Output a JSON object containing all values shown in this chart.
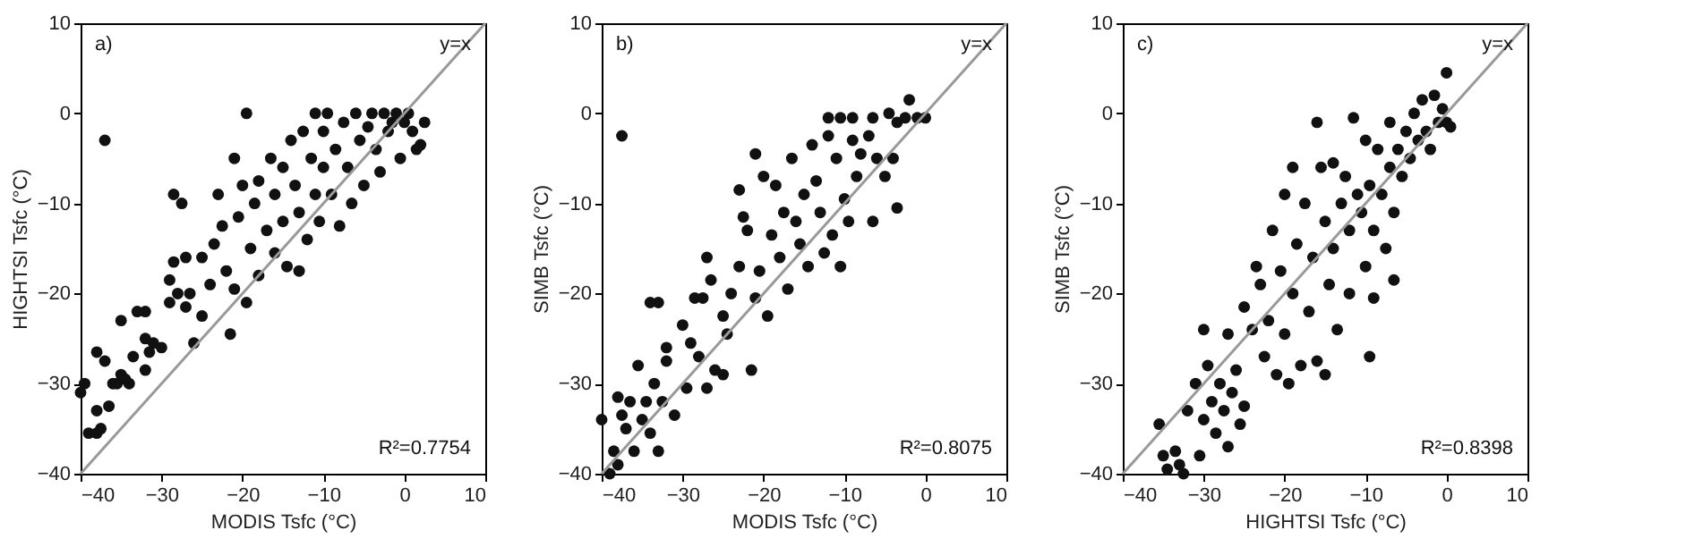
{
  "chart_data": [
    {
      "type": "scatter",
      "xlabel": "MODIS Tsfc (°C)",
      "ylabel": "HIGHTSI Tsfc (°C)",
      "xlim": [
        -40,
        10
      ],
      "ylim": [
        -40,
        10
      ],
      "xticks": [
        -40,
        -30,
        -20,
        -10,
        0,
        10
      ],
      "yticks": [
        -40,
        -30,
        -20,
        -10,
        0,
        10
      ],
      "grid": false,
      "annotations": [
        "a)",
        "y=x",
        "R²=0.7754"
      ],
      "series": [
        {
          "color": "#111111",
          "marker": "circle",
          "x": [
            -40,
            -39.5,
            -39,
            -38,
            -38,
            -38,
            -37.5,
            -37,
            -37,
            -36.5,
            -36,
            -35.5,
            -35,
            -35,
            -34.5,
            -34,
            -33.5,
            -33,
            -32,
            -32,
            -32,
            -31.5,
            -31,
            -30,
            -29,
            -29,
            -28.5,
            -28,
            -28.5,
            -27.5,
            -27,
            -27,
            -26.5,
            -26,
            -25,
            -25,
            -24,
            -23.5,
            -23,
            -22.5,
            -22,
            -21.5,
            -21,
            -21,
            -20.5,
            -20,
            -19.5,
            -19.5,
            -19,
            -18.5,
            -18,
            -18,
            -17,
            -16.5,
            -16,
            -16,
            -15,
            -15,
            -14.5,
            -14,
            -13.5,
            -13,
            -13,
            -12.5,
            -12,
            -11.5,
            -11,
            -11,
            -10.5,
            -10,
            -10,
            -9.5,
            -9,
            -8.5,
            -8,
            -7.5,
            -7,
            -6.5,
            -6,
            -5.5,
            -5,
            -4.5,
            -4,
            -3.5,
            -3,
            -2.5,
            -2,
            -1.5,
            -1,
            -0.5,
            0,
            0.5,
            1,
            1.5,
            2,
            2.5
          ],
          "values": [
            -31,
            -30,
            -35.5,
            -35.5,
            -33,
            -26.5,
            -35,
            -3,
            -27.5,
            -32.5,
            -30,
            -30,
            -29,
            -23,
            -29.5,
            -30,
            -27,
            -22,
            -25,
            -28.5,
            -22,
            -26.5,
            -25.5,
            -26,
            -21,
            -18.5,
            -16.5,
            -20,
            -9,
            -10,
            -21.5,
            -16,
            -20,
            -25.5,
            -22.5,
            -16,
            -19,
            -14.5,
            -9,
            -12.5,
            -17.5,
            -24.5,
            -5,
            -19.5,
            -11.5,
            -8,
            0,
            -21,
            -15,
            -10,
            -7.5,
            -18,
            -13,
            -5,
            -9,
            -15.5,
            -6,
            -12,
            -17,
            -3,
            -8,
            -11,
            -17.5,
            -2,
            -14,
            -5,
            0,
            -9,
            -12,
            -2,
            -6,
            0,
            -9,
            -4,
            -12.5,
            -1,
            -6,
            -10,
            0,
            -3,
            -8,
            -1.5,
            0,
            -4,
            -6.5,
            0,
            -2,
            -1,
            0,
            -5,
            -1,
            0,
            -2,
            -4,
            -3.5,
            -1
          ]
        },
        {
          "type": "line",
          "color": "#999999",
          "x": [
            -40,
            10
          ],
          "values": [
            -40,
            10
          ]
        }
      ]
    },
    {
      "type": "scatter",
      "xlabel": "MODIS Tsfc (°C)",
      "ylabel": "SIMB Tsfc (°C)",
      "xlim": [
        -40,
        10
      ],
      "ylim": [
        -40,
        10
      ],
      "xticks": [
        -40,
        -30,
        -20,
        -10,
        0,
        10
      ],
      "yticks": [
        -40,
        -30,
        -20,
        -10,
        0,
        10
      ],
      "grid": false,
      "annotations": [
        "b)",
        "y=x",
        "R²=0.8075"
      ],
      "series": [
        {
          "color": "#111111",
          "marker": "circle",
          "x": [
            -40,
            -39,
            -38.5,
            -38,
            -38,
            -37.5,
            -37.5,
            -37,
            -36.5,
            -36,
            -35.5,
            -35,
            -34.5,
            -34,
            -34,
            -33.5,
            -33,
            -33,
            -32.5,
            -32,
            -32,
            -31,
            -30,
            -29.5,
            -29,
            -28.5,
            -28,
            -27.5,
            -27,
            -27,
            -26.5,
            -26,
            -25,
            -25,
            -24.5,
            -24,
            -23,
            -23,
            -22.5,
            -22,
            -21.5,
            -21,
            -21,
            -20.5,
            -20,
            -19.5,
            -19,
            -18.5,
            -18,
            -17.5,
            -17,
            -16.5,
            -16,
            -15.5,
            -15,
            -14.5,
            -14,
            -13.5,
            -13,
            -12.5,
            -12,
            -12,
            -11.5,
            -11,
            -10.5,
            -10.5,
            -10,
            -9.5,
            -9,
            -9,
            -8.5,
            -8,
            -7,
            -6.5,
            -6.5,
            -6,
            -5,
            -4.5,
            -4,
            -3.5,
            -3.5,
            -2.5,
            -2,
            -1,
            0
          ],
          "values": [
            -34,
            -40,
            -37.5,
            -31.5,
            -39,
            -33.5,
            -2.5,
            -35,
            -32,
            -37.5,
            -28,
            -34,
            -32,
            -21,
            -35.5,
            -30,
            -37.5,
            -21,
            -32,
            -26,
            -27.5,
            -33.5,
            -23.5,
            -30.5,
            -25.5,
            -20.5,
            -27,
            -20.5,
            -16,
            -30.5,
            -18.5,
            -28.5,
            -29,
            -22.5,
            -24.5,
            -20,
            -8.5,
            -17,
            -11.5,
            -13,
            -28.5,
            -4.5,
            -20.5,
            -17.5,
            -7,
            -22.5,
            -13.5,
            -8,
            -16,
            -11,
            -19.5,
            -5,
            -12,
            -14.5,
            -9,
            -17,
            -3.5,
            -7.5,
            -11,
            -15.5,
            -2.5,
            -0.5,
            -13.5,
            -5,
            -17,
            -0.5,
            -9.5,
            -12,
            -0.5,
            -3,
            -7,
            -4.5,
            -2.5,
            -12,
            -0.5,
            -5,
            -7,
            0,
            -5,
            -10.5,
            -1,
            -0.5,
            1.5,
            -0.5,
            -0.5
          ]
        },
        {
          "type": "line",
          "color": "#999999",
          "x": [
            -40,
            10
          ],
          "values": [
            -40,
            10
          ]
        }
      ]
    },
    {
      "type": "scatter",
      "xlabel": "HIGHTSI Tsfc (°C)",
      "ylabel": "SIMB Tsfc (°C)",
      "xlim": [
        -40,
        10
      ],
      "ylim": [
        -40,
        10
      ],
      "xticks": [
        -40,
        -30,
        -20,
        -10,
        0,
        10
      ],
      "yticks": [
        -40,
        -30,
        -20,
        -10,
        0,
        10
      ],
      "grid": false,
      "annotations": [
        "c)",
        "y=x",
        "R²=0.8398"
      ],
      "series": [
        {
          "color": "#111111",
          "marker": "circle",
          "x": [
            -35.5,
            -35,
            -34.5,
            -33.5,
            -33,
            -32.5,
            -32,
            -31,
            -30.5,
            -30,
            -30,
            -29.5,
            -29,
            -28.5,
            -28,
            -27.5,
            -27,
            -27,
            -26.5,
            -26,
            -25.5,
            -25,
            -25,
            -24,
            -23.5,
            -23,
            -22.5,
            -22,
            -21.5,
            -21,
            -20.5,
            -20,
            -20,
            -19.5,
            -19,
            -19,
            -18.5,
            -18,
            -17.5,
            -17,
            -16.5,
            -16,
            -16,
            -15.5,
            -15,
            -15,
            -14.5,
            -14,
            -14,
            -13.5,
            -13,
            -12.5,
            -12,
            -12,
            -11.5,
            -11,
            -10.5,
            -10,
            -10,
            -9.5,
            -9.5,
            -9,
            -9,
            -8.5,
            -8,
            -7.5,
            -7,
            -7,
            -6.5,
            -6.5,
            -6,
            -5.5,
            -5,
            -4.5,
            -4,
            -3.5,
            -3,
            -2.5,
            -2,
            -1.5,
            -1,
            -0.5,
            0,
            0,
            0.5
          ],
          "values": [
            -34.5,
            -38,
            -39.5,
            -37.5,
            -39,
            -40,
            -33,
            -30,
            -38,
            -24,
            -34,
            -28,
            -32,
            -35.5,
            -30,
            -33,
            -24.5,
            -37,
            -31,
            -28.5,
            -34.5,
            -21.5,
            -32.5,
            -24,
            -17,
            -19,
            -27,
            -23,
            -13,
            -29,
            -17.5,
            -9,
            -24.5,
            -30,
            -6,
            -20,
            -14.5,
            -28,
            -10,
            -22,
            -16,
            -1,
            -27.5,
            -6,
            -12,
            -29,
            -19,
            -5.5,
            -15,
            -24,
            -10,
            -7,
            -13,
            -20,
            -0.5,
            -9,
            -11,
            -17,
            -3,
            -27,
            -8,
            -13,
            -20.5,
            -4,
            -9,
            -15,
            -6,
            -1,
            -18.5,
            -11,
            -4,
            -7,
            -2,
            -5,
            0,
            -3,
            1.5,
            -2,
            -4,
            2,
            -1,
            0.5,
            4.5,
            -1,
            -1.5
          ]
        },
        {
          "type": "line",
          "color": "#999999",
          "x": [
            -40,
            10
          ],
          "values": [
            -40,
            10
          ]
        }
      ]
    }
  ]
}
